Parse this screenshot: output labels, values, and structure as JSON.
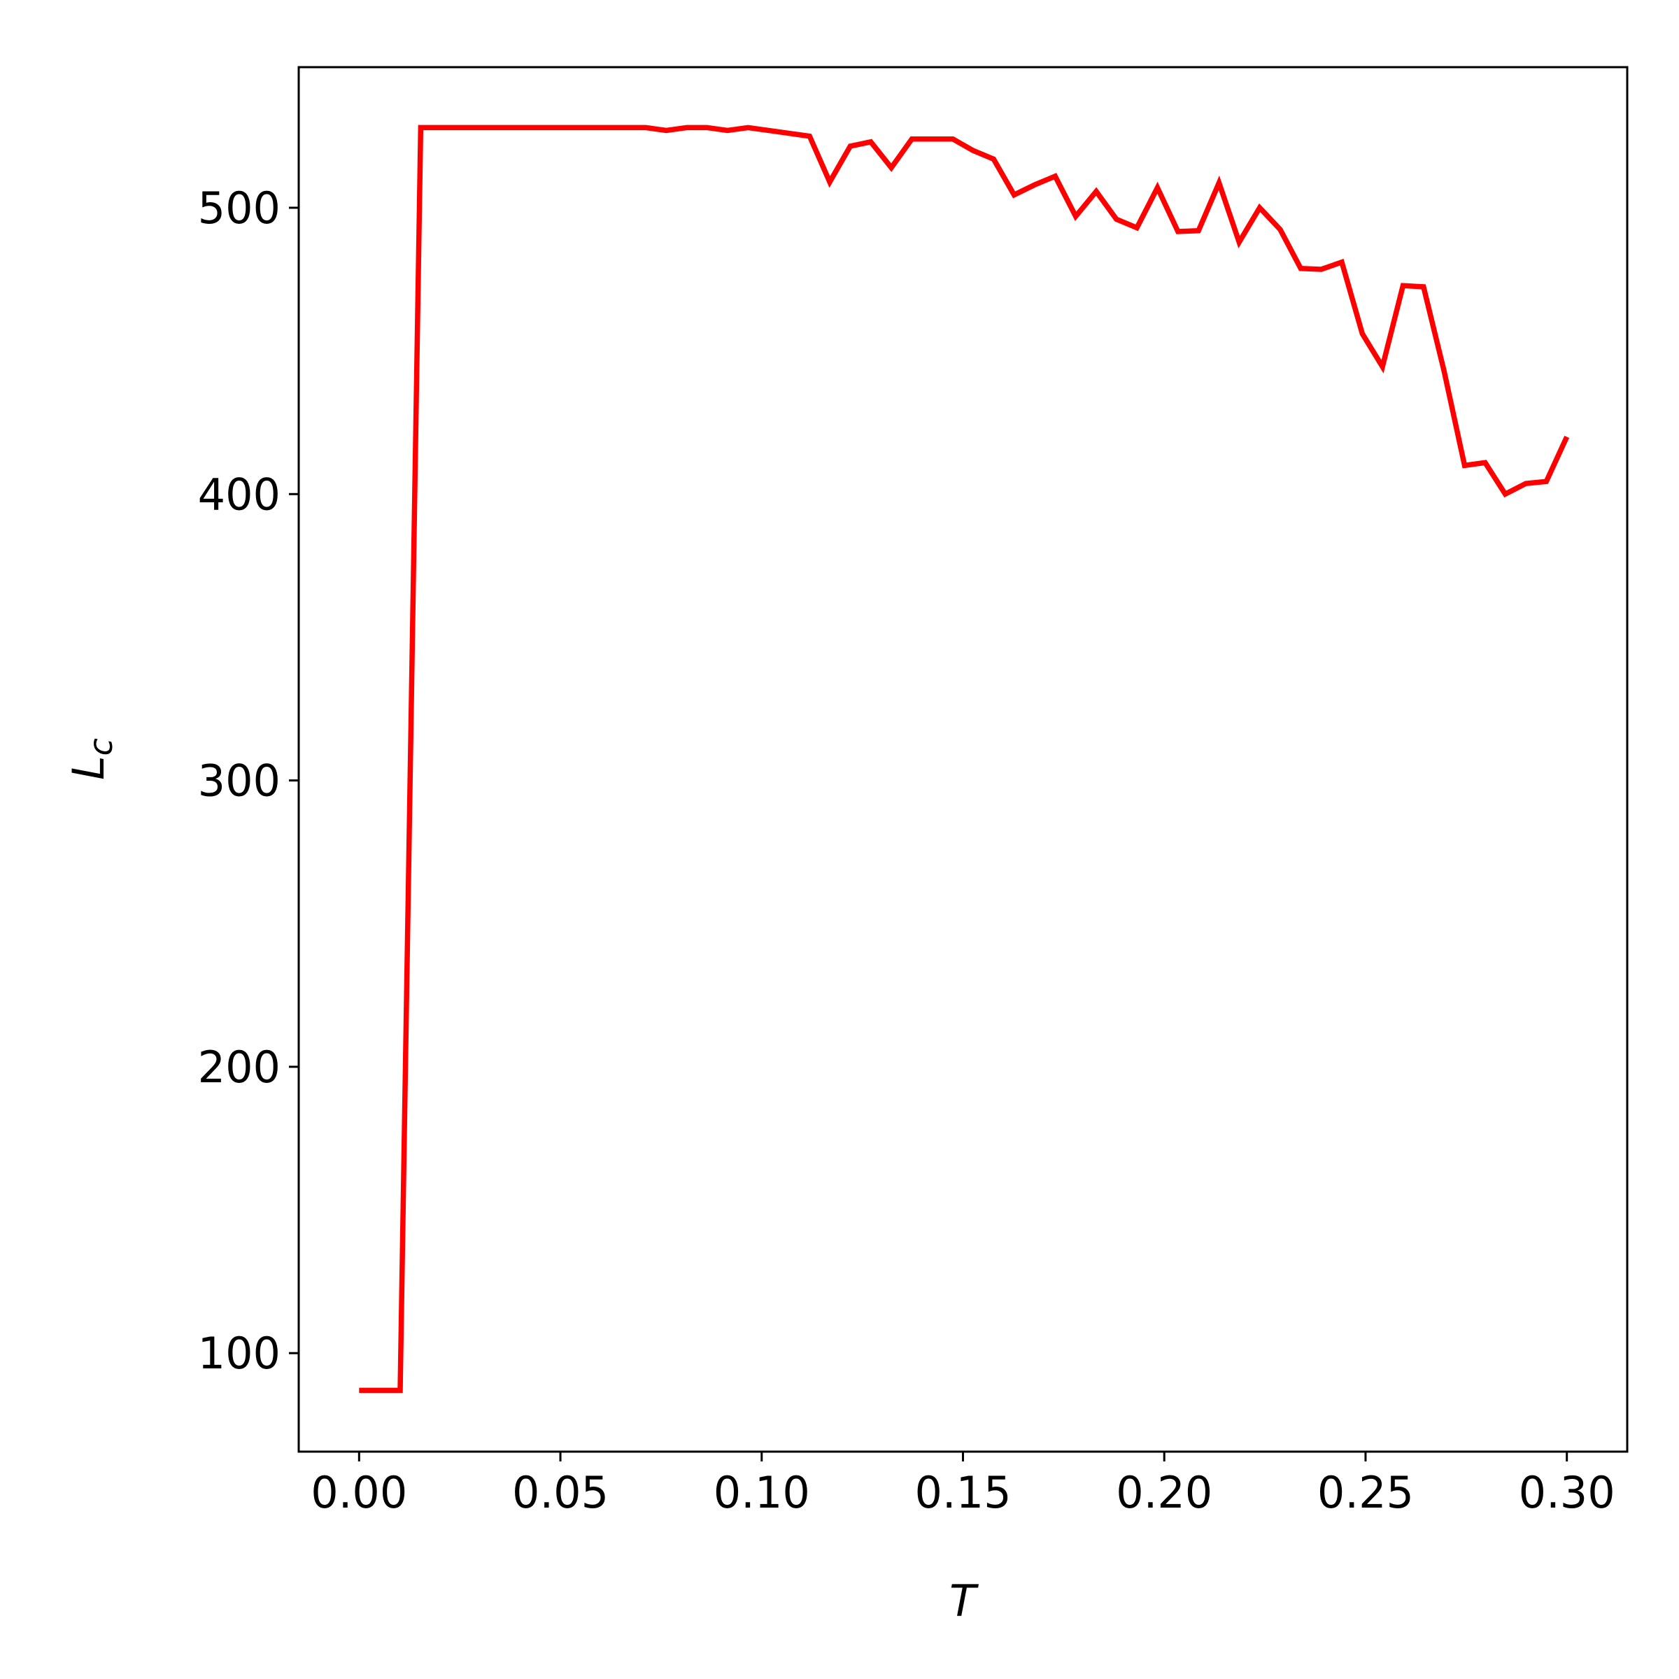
{
  "chart_data": {
    "type": "line",
    "xlabel": "T",
    "ylabel": "L",
    "ylabel_sub": "c",
    "x": [
      0,
      0.0051,
      0.0102,
      0.0153,
      0.0203,
      0.0254,
      0.0305,
      0.0356,
      0.0407,
      0.0458,
      0.0508,
      0.0559,
      0.061,
      0.0661,
      0.0712,
      0.0763,
      0.0814,
      0.0864,
      0.0915,
      0.0966,
      0.1017,
      0.1068,
      0.1119,
      0.1169,
      0.122,
      0.1271,
      0.1322,
      0.1373,
      0.1424,
      0.1475,
      0.1525,
      0.1576,
      0.1627,
      0.1678,
      0.1729,
      0.178,
      0.1831,
      0.1881,
      0.1932,
      0.1983,
      0.2034,
      0.2085,
      0.2136,
      0.2186,
      0.2237,
      0.2288,
      0.2339,
      0.239,
      0.2441,
      0.2492,
      0.2542,
      0.2593,
      0.2644,
      0.2695,
      0.2746,
      0.2797,
      0.2847,
      0.2898,
      0.2949,
      0.3
    ],
    "series": [
      {
        "color": "#ff0000",
        "values": [
          87,
          87,
          87,
          528,
          528,
          528,
          528,
          528,
          528,
          528,
          528,
          528,
          528,
          528,
          528,
          527,
          528,
          528,
          527,
          528,
          527,
          526,
          525,
          509,
          521.5,
          523,
          514,
          524,
          524,
          524,
          520,
          517,
          504.5,
          508,
          511,
          497,
          505.7,
          496,
          493,
          507,
          491.7,
          492,
          508.7,
          488,
          500,
          492.4,
          478.8,
          478.5,
          481,
          456,
          444.5,
          472.8,
          472.4,
          443,
          410,
          411,
          400,
          403.7,
          404.4,
          420
        ]
      }
    ],
    "xlim": [
      -0.015,
      0.315
    ],
    "ylim": [
      65.6,
      549.1
    ],
    "xticks": [
      {
        "value": 0,
        "label": "0.00"
      },
      {
        "value": 0.05,
        "label": "0.05"
      },
      {
        "value": 0.1,
        "label": "0.10"
      },
      {
        "value": 0.15,
        "label": "0.15"
      },
      {
        "value": 0.2,
        "label": "0.20"
      },
      {
        "value": 0.25,
        "label": "0.25"
      },
      {
        "value": 0.3,
        "label": "0.30"
      }
    ],
    "yticks": [
      100,
      200,
      300,
      400,
      500
    ]
  }
}
